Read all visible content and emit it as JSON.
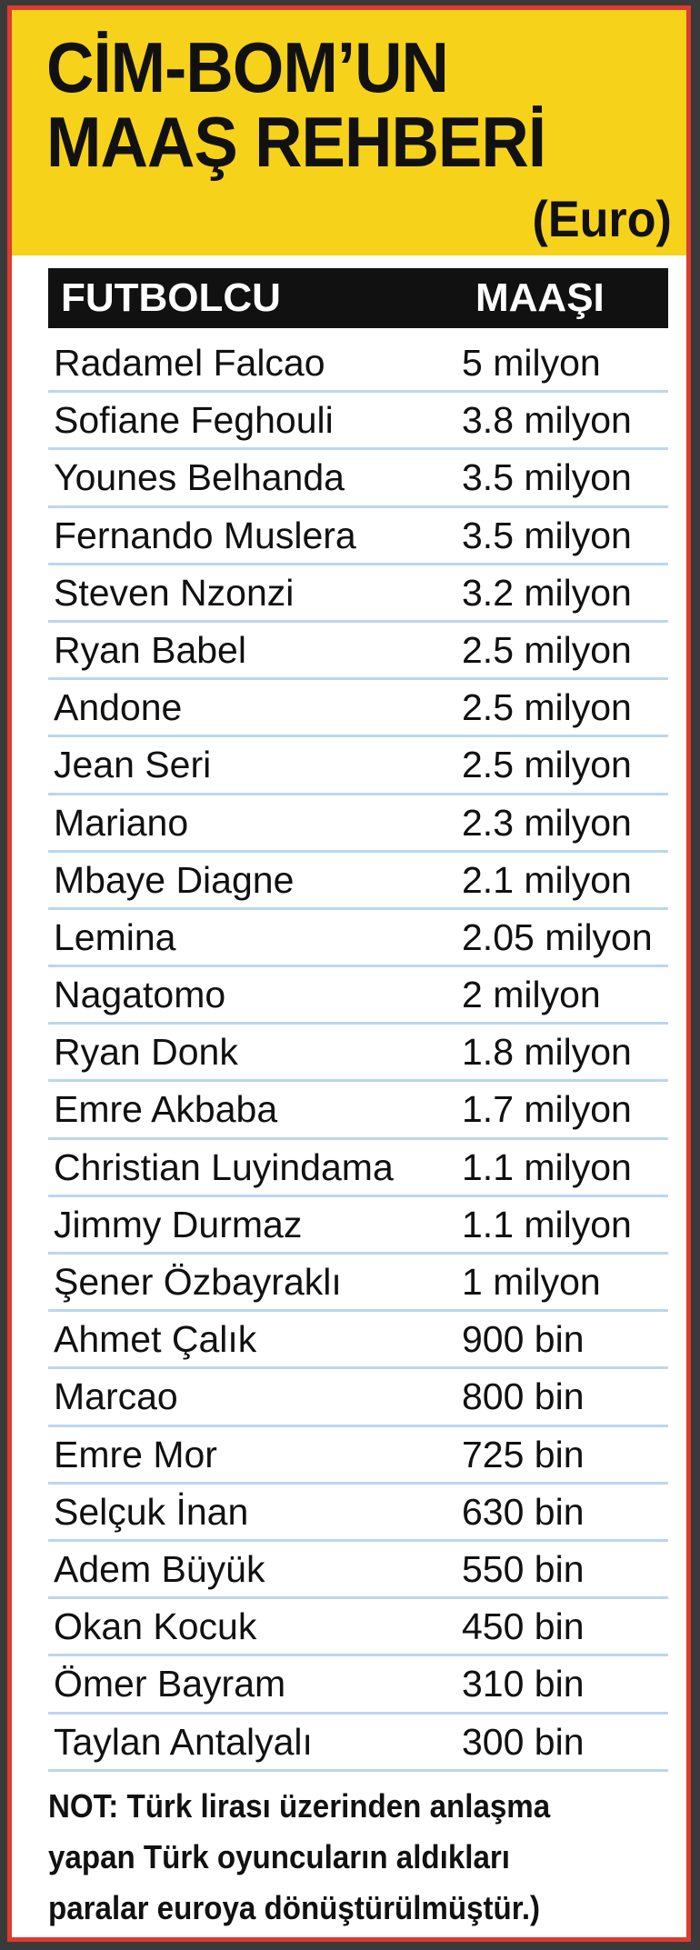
{
  "header": {
    "title": "CİM-BOM’UN\nMAAŞ REHBERİ",
    "currency": "(Euro)"
  },
  "table": {
    "columns": [
      "FUTBOLCU",
      "MAAŞI"
    ],
    "rows": [
      {
        "name": "Radamel Falcao",
        "salary": "5 milyon"
      },
      {
        "name": "Sofiane Feghouli",
        "salary": "3.8 milyon"
      },
      {
        "name": "Younes Belhanda",
        "salary": "3.5 milyon"
      },
      {
        "name": "Fernando Muslera",
        "salary": "3.5 milyon"
      },
      {
        "name": "Steven Nzonzi",
        "salary": "3.2 milyon"
      },
      {
        "name": "Ryan Babel",
        "salary": "2.5 milyon"
      },
      {
        "name": "Andone",
        "salary": "2.5 milyon"
      },
      {
        "name": "Jean Seri",
        "salary": "2.5 milyon"
      },
      {
        "name": "Mariano",
        "salary": "2.3 milyon"
      },
      {
        "name": "Mbaye Diagne",
        "salary": "2.1 milyon"
      },
      {
        "name": "Lemina",
        "salary": "2.05 milyon"
      },
      {
        "name": "Nagatomo",
        "salary": "2 milyon"
      },
      {
        "name": "Ryan Donk",
        "salary": "1.8 milyon"
      },
      {
        "name": "Emre Akbaba",
        "salary": "1.7 milyon"
      },
      {
        "name": "Christian Luyindama",
        "salary": "1.1 milyon"
      },
      {
        "name": "Jimmy Durmaz",
        "salary": "1.1 milyon"
      },
      {
        "name": "Şener Özbayraklı",
        "salary": "1 milyon"
      },
      {
        "name": "Ahmet Çalık",
        "salary": "900 bin"
      },
      {
        "name": "Marcao",
        "salary": "800 bin"
      },
      {
        "name": "Emre Mor",
        "salary": "725 bin"
      },
      {
        "name": "Selçuk İnan",
        "salary": "630 bin"
      },
      {
        "name": "Adem Büyük",
        "salary": "550 bin"
      },
      {
        "name": "Okan Kocuk",
        "salary": "450 bin"
      },
      {
        "name": "Ömer Bayram",
        "salary": "310 bin"
      },
      {
        "name": "Taylan Antalyalı",
        "salary": "300 bin"
      }
    ]
  },
  "note": "NOT: Türk lirası üzerinden anlaşma\nyapan Türk oyuncuların aldıkları\nparalar euroya dönüştürülmüştür.)",
  "colors": {
    "header_bg": "#f7d21a",
    "border": "#e03a2e",
    "row_divider": "#bcd6ef",
    "column_header_bg": "#111111"
  }
}
